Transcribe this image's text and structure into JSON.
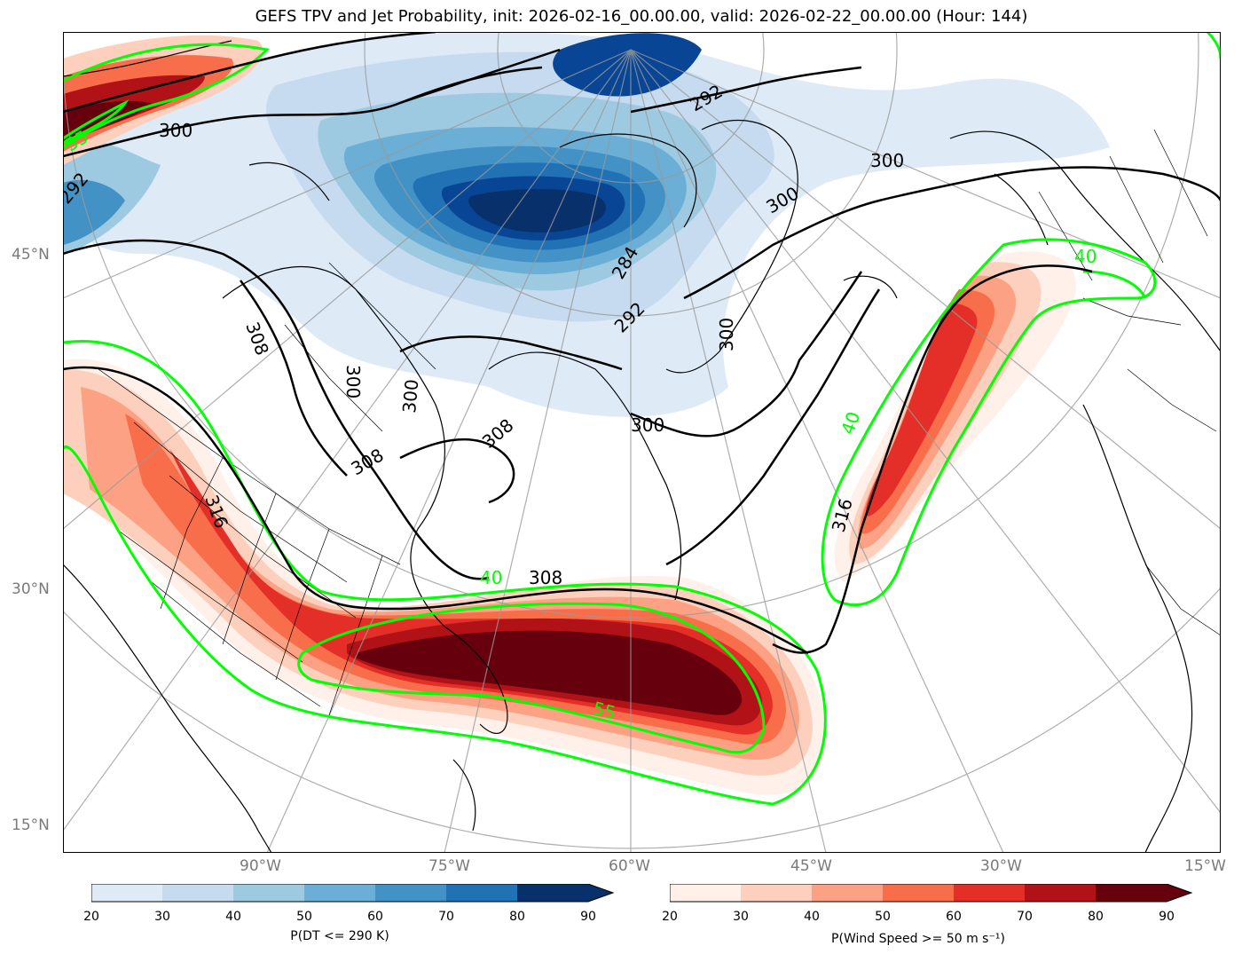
{
  "title": "GEFS TPV and Jet Probability, init: 2026-02-16_00.00.00, valid: 2026-02-22_00.00.00 (Hour: 144)",
  "map": {
    "lat_labels": [
      "45°N",
      "30°N",
      "15°N"
    ],
    "lon_labels": [
      "90°W",
      "75°W",
      "60°W",
      "45°W",
      "30°W",
      "15°W"
    ],
    "contour_labels": [
      "300",
      "292",
      "284",
      "300",
      "300",
      "308",
      "308",
      "300",
      "300",
      "316",
      "316",
      "292",
      "292",
      "308",
      "300",
      "40",
      "40",
      "40",
      "55",
      "55",
      "308",
      "300"
    ],
    "jet_level_labels": [
      "40",
      "55"
    ],
    "colors": {
      "tpv_ramp": [
        "#deebf7",
        "#c6dbef",
        "#9ecae1",
        "#6baed6",
        "#4292c6",
        "#2171b5",
        "#084594",
        "#08306b"
      ],
      "jet_ramp": [
        "#fff0ea",
        "#fdd0bd",
        "#fca183",
        "#f96e4a",
        "#e32f27",
        "#b11218",
        "#67000d"
      ],
      "jet_contour": "#00ff00",
      "theta_contour": "#000000"
    }
  },
  "colorbars": {
    "tpv": {
      "label": "P(DT <= 290 K)",
      "ticks": [
        "20",
        "30",
        "40",
        "50",
        "60",
        "70",
        "80",
        "90"
      ]
    },
    "jet": {
      "label": "P(Wind Speed >= 50 m s⁻¹)",
      "ticks": [
        "20",
        "30",
        "40",
        "50",
        "60",
        "70",
        "80",
        "90"
      ]
    }
  }
}
